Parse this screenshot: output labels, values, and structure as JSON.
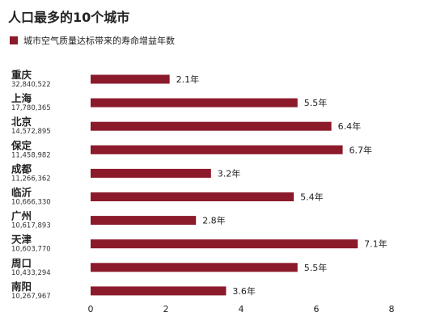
{
  "page": {
    "title": "人口最多的10个城市",
    "legend_label": "城市空气质量达标带来的寿命增益年数",
    "accent_color": "#8b1a2b"
  },
  "chart_data": {
    "type": "bar",
    "orientation": "horizontal",
    "title": "人口最多的10个城市",
    "series": [
      {
        "name": "城市空气质量达标带来的寿命增益年数",
        "values": [
          2.1,
          5.5,
          6.4,
          6.7,
          3.2,
          5.4,
          2.8,
          7.1,
          5.5,
          3.6
        ]
      }
    ],
    "categories": [
      "重庆",
      "上海",
      "北京",
      "保定",
      "成都",
      "临沂",
      "广州",
      "天津",
      "周口",
      "南阳"
    ],
    "populations": [
      "32,840,522",
      "17,780,365",
      "14,572,895",
      "11,458,982",
      "11,266,362",
      "10,666,330",
      "10,617,893",
      "10,603,770",
      "10,433,294",
      "10,267,967"
    ],
    "value_labels": [
      "2.1年",
      "5.5年",
      "6.4年",
      "6.7年",
      "3.2年",
      "5.4年",
      "2.8年",
      "7.1年",
      "5.5年",
      "3.6年"
    ],
    "xlim": [
      0,
      8
    ],
    "x_ticks": [
      "0",
      "2",
      "4",
      "6",
      "8"
    ],
    "bar_color": "#8b1a2b",
    "grid": false
  }
}
